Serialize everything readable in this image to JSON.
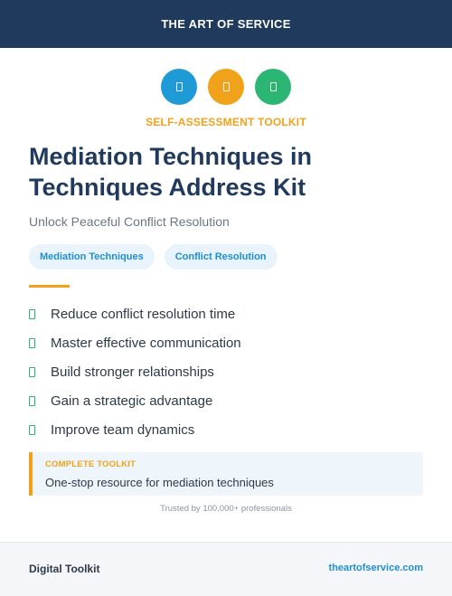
{
  "header": {
    "brand": "THE ART OF SERVICE"
  },
  "icons": [
    {
      "name": "document-icon",
      "color": "#1e9ad6"
    },
    {
      "name": "document-icon",
      "color": "#f0a21a"
    },
    {
      "name": "document-icon",
      "color": "#2bb673"
    }
  ],
  "hero": {
    "kicker": "SELF-ASSESSMENT TOOLKIT",
    "title_line1": "Mediation Techniques in",
    "title_line2": "Techniques Address Kit",
    "subtitle": "Unlock Peaceful Conflict Resolution"
  },
  "tags": [
    "Mediation Techniques",
    "Conflict Resolution"
  ],
  "benefits": [
    "Reduce conflict resolution time",
    "Master effective communication",
    "Build stronger relationships",
    "Gain a strategic advantage",
    "Improve team dynamics"
  ],
  "callout": {
    "label": "COMPLETE TOOLKIT",
    "text": "One-stop resource for mediation techniques"
  },
  "trusted": "Trusted by 100,000+ professionals",
  "footer": {
    "left": "Digital Toolkit",
    "right": "theartofservice.com"
  },
  "colors": {
    "navy": "#1f3a5c",
    "accent": "#f0a21a",
    "green": "#2bb673",
    "blue": "#1e8fd0"
  }
}
